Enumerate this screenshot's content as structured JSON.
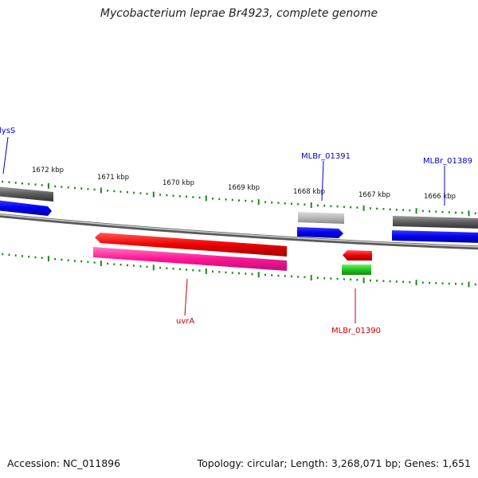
{
  "title": "Mycobacterium leprae Br4923, complete genome",
  "footer": {
    "accession": "Accession: NC_011896",
    "topology": "Topology: circular; Length: 3,268,071 bp; Genes: 1,651"
  },
  "ticks": [
    {
      "label": "1672 kbp",
      "kbp": 1672
    },
    {
      "label": "1671 kbp",
      "kbp": 1671
    },
    {
      "label": "1670 kbp",
      "kbp": 1670
    },
    {
      "label": "1669 kbp",
      "kbp": 1669
    },
    {
      "label": "1668 kbp",
      "kbp": 1668
    },
    {
      "label": "1667 kbp",
      "kbp": 1667
    },
    {
      "label": "1666 kbp",
      "kbp": 1666
    }
  ],
  "genes": [
    {
      "label": "lysS",
      "strand": "+",
      "color": "#0000cc"
    },
    {
      "label": "MLBr_01391",
      "strand": "+",
      "color": "#0000cc"
    },
    {
      "label": "MLBr_01389",
      "strand": "+",
      "color": "#0000cc"
    },
    {
      "label": "uvrA",
      "strand": "-",
      "color": "#cc0000"
    },
    {
      "label": "MLBr_01390",
      "strand": "-",
      "color": "#cc0000"
    }
  ],
  "colors": {
    "backbone": "#8a8a8a",
    "gene_plus": "#0000ff",
    "gene_minus": "#ff0000",
    "cds_gray": "#666666",
    "cds_light_gray": "#b5b5b5",
    "cds_pink": "#ff2a9a",
    "cds_green": "#2ecc2e",
    "tick_green": "#1a8a1a"
  }
}
